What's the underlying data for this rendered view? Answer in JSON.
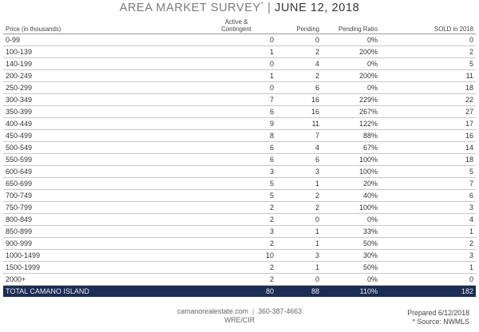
{
  "header": {
    "title_main": "AREA MARKET SURVEY",
    "title_mark": "*",
    "title_sep": " | ",
    "title_date": "JUNE 12, 2018"
  },
  "table": {
    "columns": {
      "price": "Price (in thousands)",
      "active_line1": "Active &",
      "active_line2": "Contingent",
      "pending": "Pending",
      "ratio": "Pending Ratio",
      "sold": "SOLD in 2018"
    },
    "rows": [
      {
        "price": "0-99",
        "active": "0",
        "pending": "0",
        "ratio": "0%",
        "sold": "0"
      },
      {
        "price": "100-139",
        "active": "1",
        "pending": "2",
        "ratio": "200%",
        "sold": "2"
      },
      {
        "price": "140-199",
        "active": "0",
        "pending": "4",
        "ratio": "0%",
        "sold": "5"
      },
      {
        "price": "200-249",
        "active": "1",
        "pending": "2",
        "ratio": "200%",
        "sold": "11"
      },
      {
        "price": "250-299",
        "active": "0",
        "pending": "6",
        "ratio": "0%",
        "sold": "18"
      },
      {
        "price": "300-349",
        "active": "7",
        "pending": "16",
        "ratio": "229%",
        "sold": "22"
      },
      {
        "price": "350-399",
        "active": "6",
        "pending": "16",
        "ratio": "267%",
        "sold": "27"
      },
      {
        "price": "400-449",
        "active": "9",
        "pending": "11",
        "ratio": "122%",
        "sold": "17"
      },
      {
        "price": "450-499",
        "active": "8",
        "pending": "7",
        "ratio": "88%",
        "sold": "16"
      },
      {
        "price": "500-549",
        "active": "6",
        "pending": "4",
        "ratio": "67%",
        "sold": "14"
      },
      {
        "price": "550-599",
        "active": "6",
        "pending": "6",
        "ratio": "100%",
        "sold": "18"
      },
      {
        "price": "600-649",
        "active": "3",
        "pending": "3",
        "ratio": "100%",
        "sold": "5"
      },
      {
        "price": "650-699",
        "active": "5",
        "pending": "1",
        "ratio": "20%",
        "sold": "7"
      },
      {
        "price": "700-749",
        "active": "5",
        "pending": "2",
        "ratio": "40%",
        "sold": "6"
      },
      {
        "price": "750-799",
        "active": "2",
        "pending": "2",
        "ratio": "100%",
        "sold": "3"
      },
      {
        "price": "800-849",
        "active": "2",
        "pending": "0",
        "ratio": "0%",
        "sold": "4"
      },
      {
        "price": "850-899",
        "active": "3",
        "pending": "1",
        "ratio": "33%",
        "sold": "1"
      },
      {
        "price": "900-999",
        "active": "2",
        "pending": "1",
        "ratio": "50%",
        "sold": "2"
      },
      {
        "price": "1000-1499",
        "active": "10",
        "pending": "3",
        "ratio": "30%",
        "sold": "3"
      },
      {
        "price": "1500-1999",
        "active": "2",
        "pending": "1",
        "ratio": "50%",
        "sold": "1"
      },
      {
        "price": "2000+",
        "active": "2",
        "pending": "0",
        "ratio": "0%",
        "sold": "0"
      }
    ],
    "total": {
      "price": "TOTAL CAMANO ISLAND",
      "active": "80",
      "pending": "88",
      "ratio": "110%",
      "sold": "182"
    }
  },
  "footer": {
    "website": "camanorealestate.com",
    "pipe": "|",
    "phone": "360-387-4663",
    "office": "WRE/CIR",
    "prepared": "Prepared 6/12/2018",
    "source": "* Source: NWMLS"
  },
  "colors": {
    "total_row_bg": "#1b2c55",
    "title_gray": "#7a7a7a"
  }
}
